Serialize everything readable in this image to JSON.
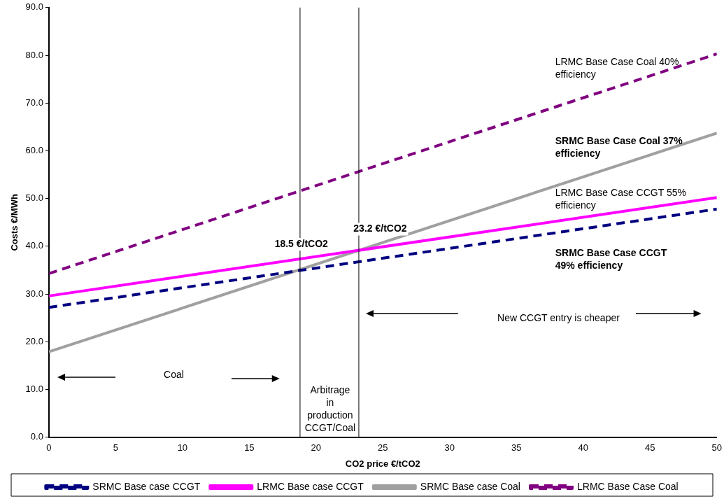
{
  "chart_data": {
    "type": "line",
    "xlabel": "CO2 price €/tCO2",
    "ylabel": "Costs €/MWh",
    "xlim": [
      0,
      50
    ],
    "xticks": [
      0,
      5,
      10,
      15,
      20,
      25,
      30,
      35,
      40,
      45,
      50
    ],
    "ylim": [
      0,
      90
    ],
    "yticks": [
      {
        "value": 0,
        "label": "0.0"
      },
      {
        "value": 10,
        "label": "10.0"
      },
      {
        "value": 20,
        "label": "20.0"
      },
      {
        "value": 30,
        "label": "30.0"
      },
      {
        "value": 40,
        "label": "40.0"
      },
      {
        "value": 50,
        "label": "50.0"
      },
      {
        "value": 60,
        "label": "60.0"
      },
      {
        "value": 70,
        "label": "70.0"
      },
      {
        "value": 80,
        "label": "80.0"
      },
      {
        "value": 90,
        "label": "90.0"
      }
    ],
    "x": [
      0,
      50
    ],
    "grid": false,
    "legend": "bottom",
    "marker": "none",
    "series": [
      {
        "name": "SRMC Base case CCGT",
        "color": "#000080",
        "line_style": "dashed",
        "values": [
          27.2,
          47.8
        ]
      },
      {
        "name": "LRMC Base case CCGT",
        "color": "#ff00ff",
        "line_style": "solid",
        "values": [
          29.6,
          50.2
        ]
      },
      {
        "name": "SRMC Base case Coal",
        "color": "#a0a0a0",
        "line_style": "solid",
        "values": [
          17.9,
          63.7
        ]
      },
      {
        "name": "LRMC Base Case Coal",
        "color": "#800080",
        "line_style": "dashed",
        "values": [
          34.3,
          80.3
        ]
      }
    ],
    "ref_lines": [
      {
        "axis": "x",
        "value": 18.8,
        "color": "#000000"
      },
      {
        "axis": "x",
        "value": 23.2,
        "color": "#000000"
      }
    ],
    "annotations": [
      "LRMC Base Case Coal 40%\nefficiency",
      "SRMC Base Case Coal 37%\nefficiency",
      "LRMC Base Case CCGT 55%\nefficiency",
      "SRMC Base Case CCGT\n49% efficiency",
      "18.5 €/tCO2",
      "23.2 €/tCO2",
      "Coal",
      "Arbitrage\nin\nproduction\nCCGT/Coal",
      "New CCGT entry is cheaper"
    ]
  }
}
